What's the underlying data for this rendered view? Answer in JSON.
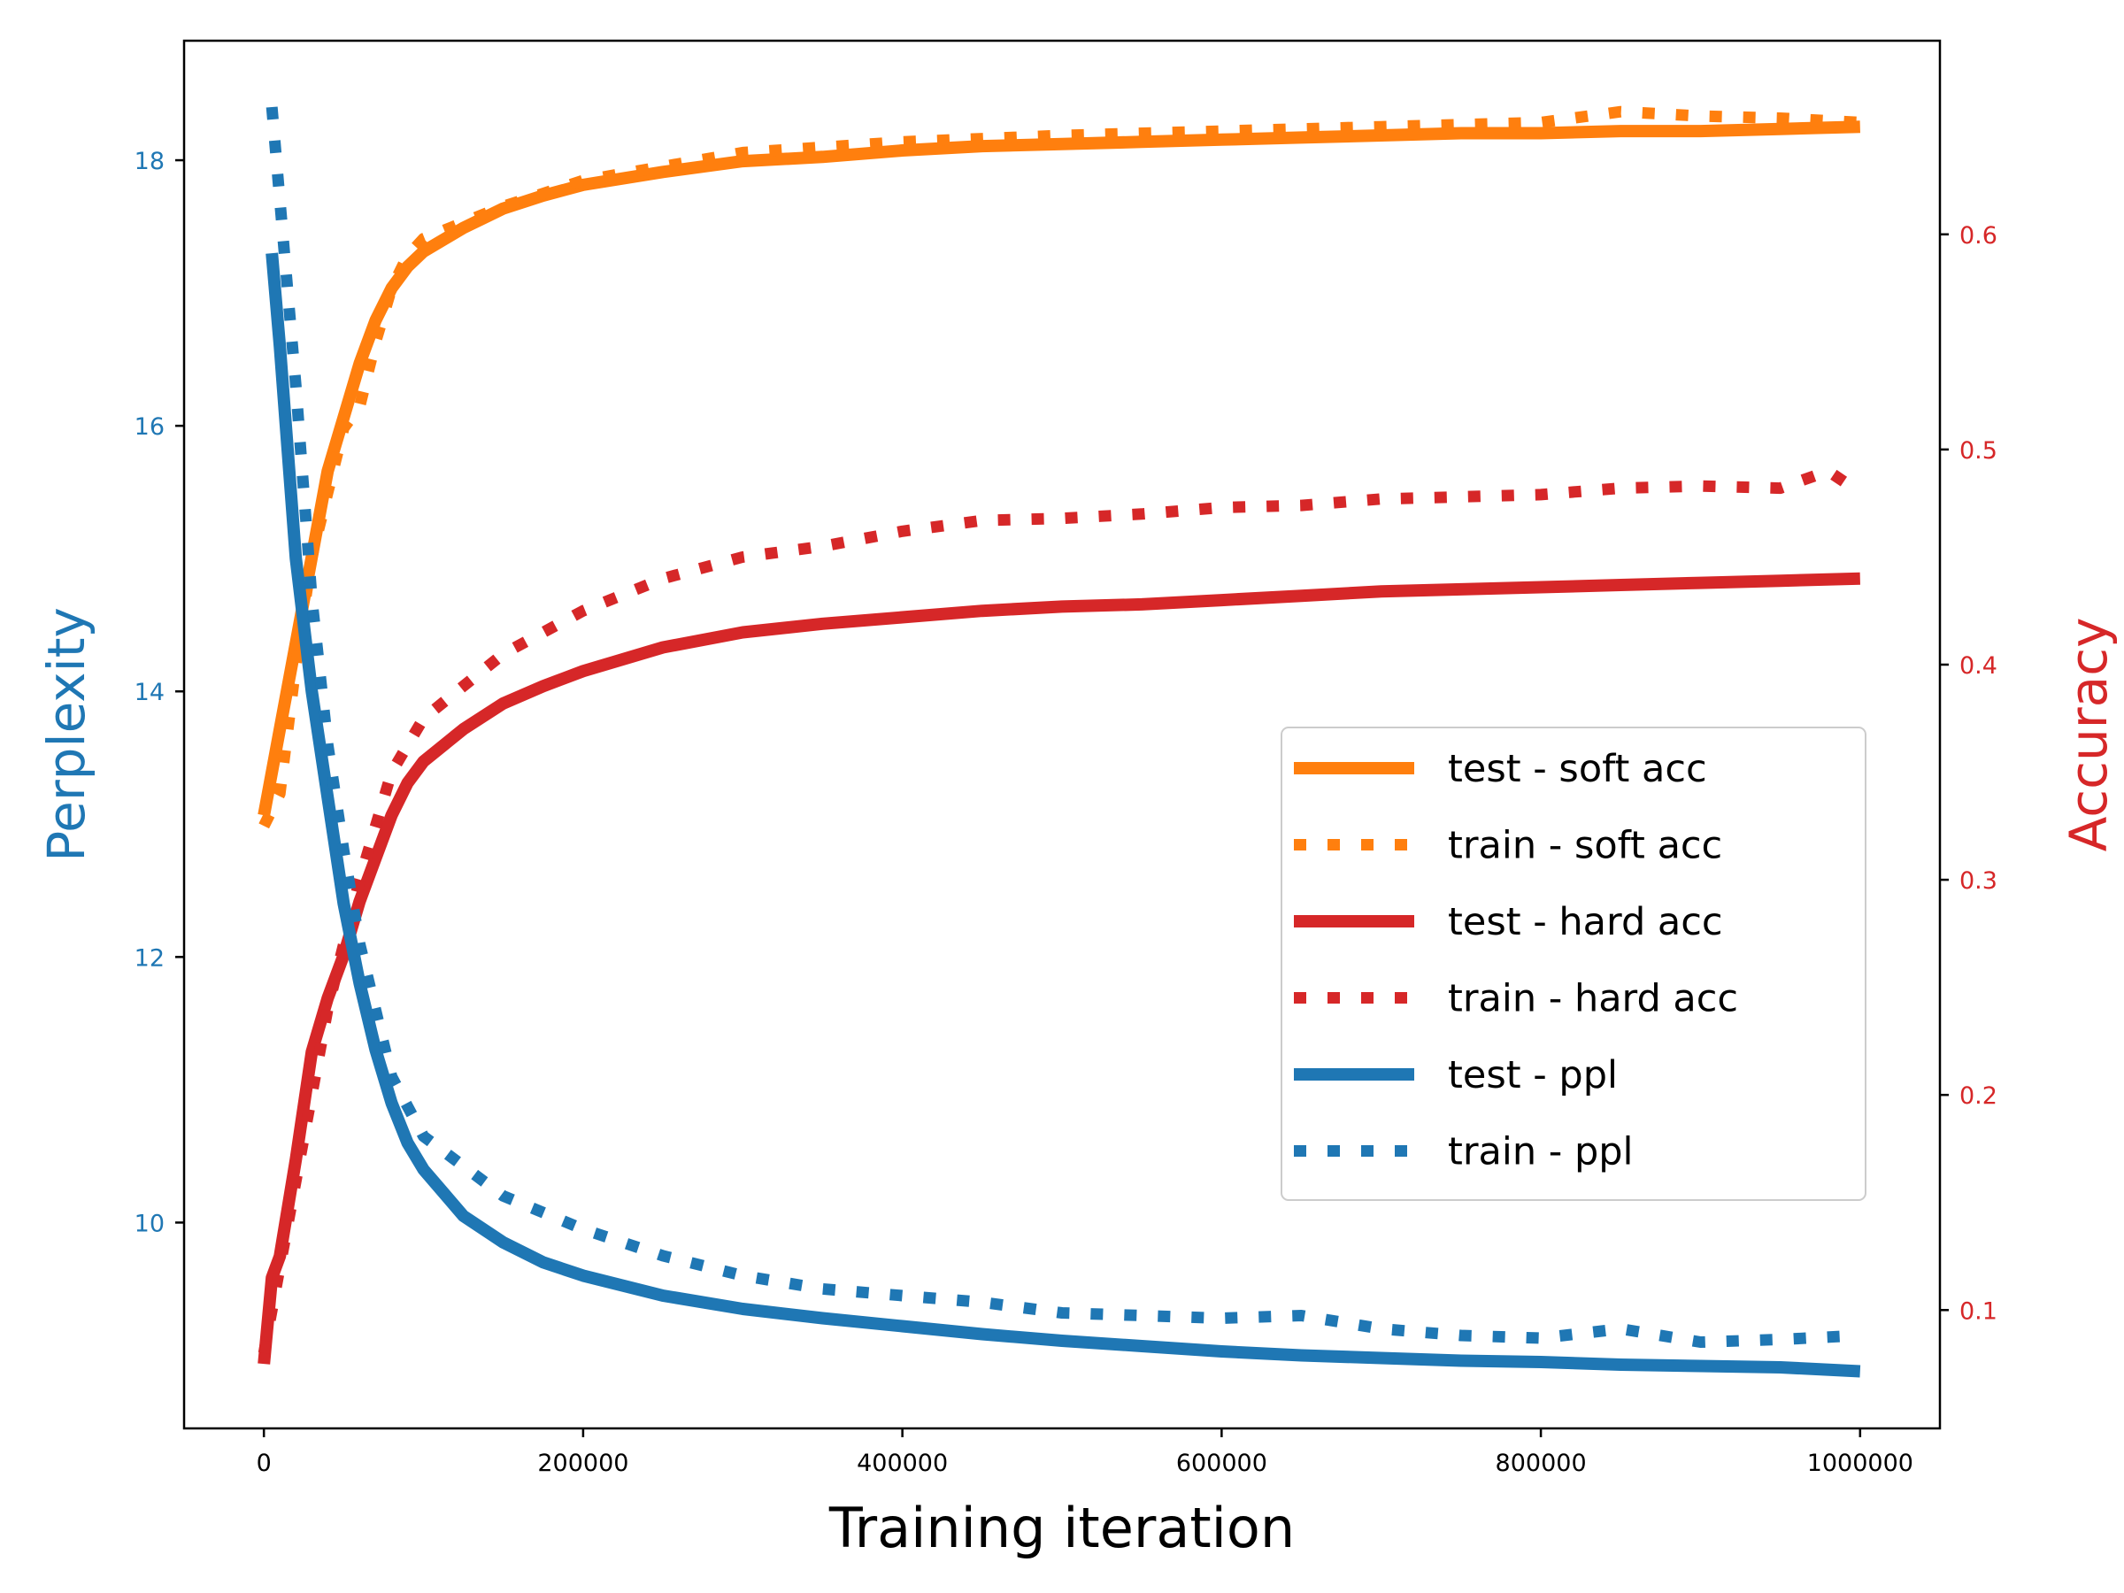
{
  "chart_data": {
    "type": "line",
    "xlabel": "Training iteration",
    "ylabel_left": "Perplexity",
    "ylabel_right": "Accuracy",
    "xlim": [
      -50000,
      1050000
    ],
    "ylim_left": [
      8.45,
      18.9
    ],
    "ylim_right": [
      0.045,
      0.69
    ],
    "x_ticks": [
      0,
      200000,
      400000,
      600000,
      800000,
      1000000
    ],
    "x_tick_labels": [
      "0",
      "200000",
      "400000",
      "600000",
      "800000",
      "1000000"
    ],
    "y_left_ticks": [
      10,
      12,
      14,
      16,
      18
    ],
    "y_left_tick_labels": [
      "10",
      "12",
      "14",
      "16",
      "18"
    ],
    "y_right_ticks": [
      0.1,
      0.2,
      0.3,
      0.4,
      0.5,
      0.6
    ],
    "y_right_tick_labels": [
      "0.1",
      "0.2",
      "0.3",
      "0.4",
      "0.5",
      "0.6"
    ],
    "colors": {
      "left_axis": "#1f77b4",
      "right_axis": "#d62728",
      "soft": "#ff7f0e",
      "hard": "#d62728",
      "ppl": "#1f77b4"
    },
    "legend": {
      "placement": "center-right",
      "entries": [
        "test - soft acc",
        "train - soft acc",
        "test - hard acc",
        "train - hard acc",
        "test - ppl",
        "train - ppl"
      ]
    },
    "series": [
      {
        "name": "test - soft acc",
        "axis": "right",
        "style": "solid",
        "color": "#ff7f0e",
        "x": [
          0,
          10000,
          20000,
          30000,
          40000,
          50000,
          60000,
          70000,
          80000,
          90000,
          100000,
          125000,
          150000,
          175000,
          200000,
          250000,
          300000,
          350000,
          400000,
          450000,
          500000,
          550000,
          600000,
          650000,
          700000,
          750000,
          800000,
          850000,
          900000,
          950000,
          1000000
        ],
        "y": [
          0.33,
          0.37,
          0.41,
          0.45,
          0.49,
          0.515,
          0.54,
          0.56,
          0.575,
          0.585,
          0.592,
          0.603,
          0.612,
          0.618,
          0.623,
          0.629,
          0.634,
          0.636,
          0.639,
          0.641,
          0.642,
          0.643,
          0.644,
          0.645,
          0.646,
          0.647,
          0.647,
          0.648,
          0.648,
          0.649,
          0.65
        ]
      },
      {
        "name": "train - soft acc",
        "axis": "right",
        "style": "dotted",
        "color": "#ff7f0e",
        "x": [
          0,
          10000,
          20000,
          30000,
          40000,
          50000,
          60000,
          70000,
          80000,
          90000,
          100000,
          150000,
          200000,
          300000,
          400000,
          500000,
          600000,
          700000,
          800000,
          850000,
          900000,
          950000,
          1000000
        ],
        "y": [
          0.325,
          0.34,
          0.4,
          0.45,
          0.48,
          0.51,
          0.52,
          0.55,
          0.575,
          0.59,
          0.598,
          0.613,
          0.625,
          0.638,
          0.643,
          0.646,
          0.648,
          0.65,
          0.652,
          0.657,
          0.655,
          0.654,
          0.652
        ]
      },
      {
        "name": "test - hard acc",
        "axis": "right",
        "style": "solid",
        "color": "#d62728",
        "x": [
          0,
          5000,
          10000,
          20000,
          30000,
          40000,
          50000,
          60000,
          70000,
          80000,
          90000,
          100000,
          125000,
          150000,
          175000,
          200000,
          250000,
          300000,
          350000,
          400000,
          450000,
          500000,
          550000,
          600000,
          650000,
          700000,
          750000,
          800000,
          850000,
          900000,
          950000,
          1000000
        ],
        "y": [
          0.075,
          0.115,
          0.125,
          0.17,
          0.22,
          0.245,
          0.265,
          0.29,
          0.31,
          0.33,
          0.345,
          0.355,
          0.37,
          0.382,
          0.39,
          0.397,
          0.408,
          0.415,
          0.419,
          0.422,
          0.425,
          0.427,
          0.428,
          0.43,
          0.432,
          0.434,
          0.435,
          0.436,
          0.437,
          0.438,
          0.439,
          0.44
        ]
      },
      {
        "name": "train - hard acc",
        "axis": "right",
        "style": "dotted",
        "color": "#d62728",
        "x": [
          0,
          20000,
          40000,
          60000,
          80000,
          100000,
          150000,
          200000,
          250000,
          300000,
          350000,
          400000,
          450000,
          500000,
          550000,
          600000,
          650000,
          700000,
          750000,
          800000,
          850000,
          900000,
          950000,
          980000,
          1000000
        ],
        "y": [
          0.08,
          0.16,
          0.24,
          0.3,
          0.35,
          0.375,
          0.405,
          0.425,
          0.44,
          0.45,
          0.455,
          0.462,
          0.467,
          0.468,
          0.47,
          0.473,
          0.474,
          0.477,
          0.478,
          0.479,
          0.482,
          0.483,
          0.482,
          0.49,
          0.48
        ]
      },
      {
        "name": "test - ppl",
        "axis": "left",
        "style": "solid",
        "color": "#1f77b4",
        "x": [
          5000,
          10000,
          20000,
          30000,
          40000,
          50000,
          60000,
          70000,
          80000,
          90000,
          100000,
          125000,
          150000,
          175000,
          200000,
          250000,
          300000,
          350000,
          400000,
          450000,
          500000,
          550000,
          600000,
          650000,
          700000,
          750000,
          800000,
          850000,
          900000,
          950000,
          1000000
        ],
        "y": [
          17.3,
          16.6,
          15.0,
          14.0,
          13.2,
          12.4,
          11.8,
          11.3,
          10.9,
          10.6,
          10.4,
          10.05,
          9.85,
          9.7,
          9.6,
          9.45,
          9.35,
          9.28,
          9.22,
          9.16,
          9.11,
          9.07,
          9.03,
          9.0,
          8.98,
          8.96,
          8.95,
          8.93,
          8.92,
          8.91,
          8.88
        ]
      },
      {
        "name": "train - ppl",
        "axis": "left",
        "style": "dotted",
        "color": "#1f77b4",
        "x": [
          5000,
          10000,
          20000,
          30000,
          40000,
          50000,
          60000,
          70000,
          80000,
          100000,
          150000,
          200000,
          250000,
          300000,
          350000,
          400000,
          450000,
          500000,
          550000,
          600000,
          650000,
          700000,
          750000,
          800000,
          850000,
          900000,
          950000,
          1000000
        ],
        "y": [
          18.4,
          17.7,
          16.3,
          14.7,
          13.6,
          12.8,
          12.1,
          11.6,
          11.1,
          10.65,
          10.2,
          9.95,
          9.75,
          9.6,
          9.5,
          9.45,
          9.4,
          9.32,
          9.3,
          9.28,
          9.3,
          9.2,
          9.15,
          9.13,
          9.2,
          9.1,
          9.12,
          9.15
        ]
      }
    ]
  }
}
